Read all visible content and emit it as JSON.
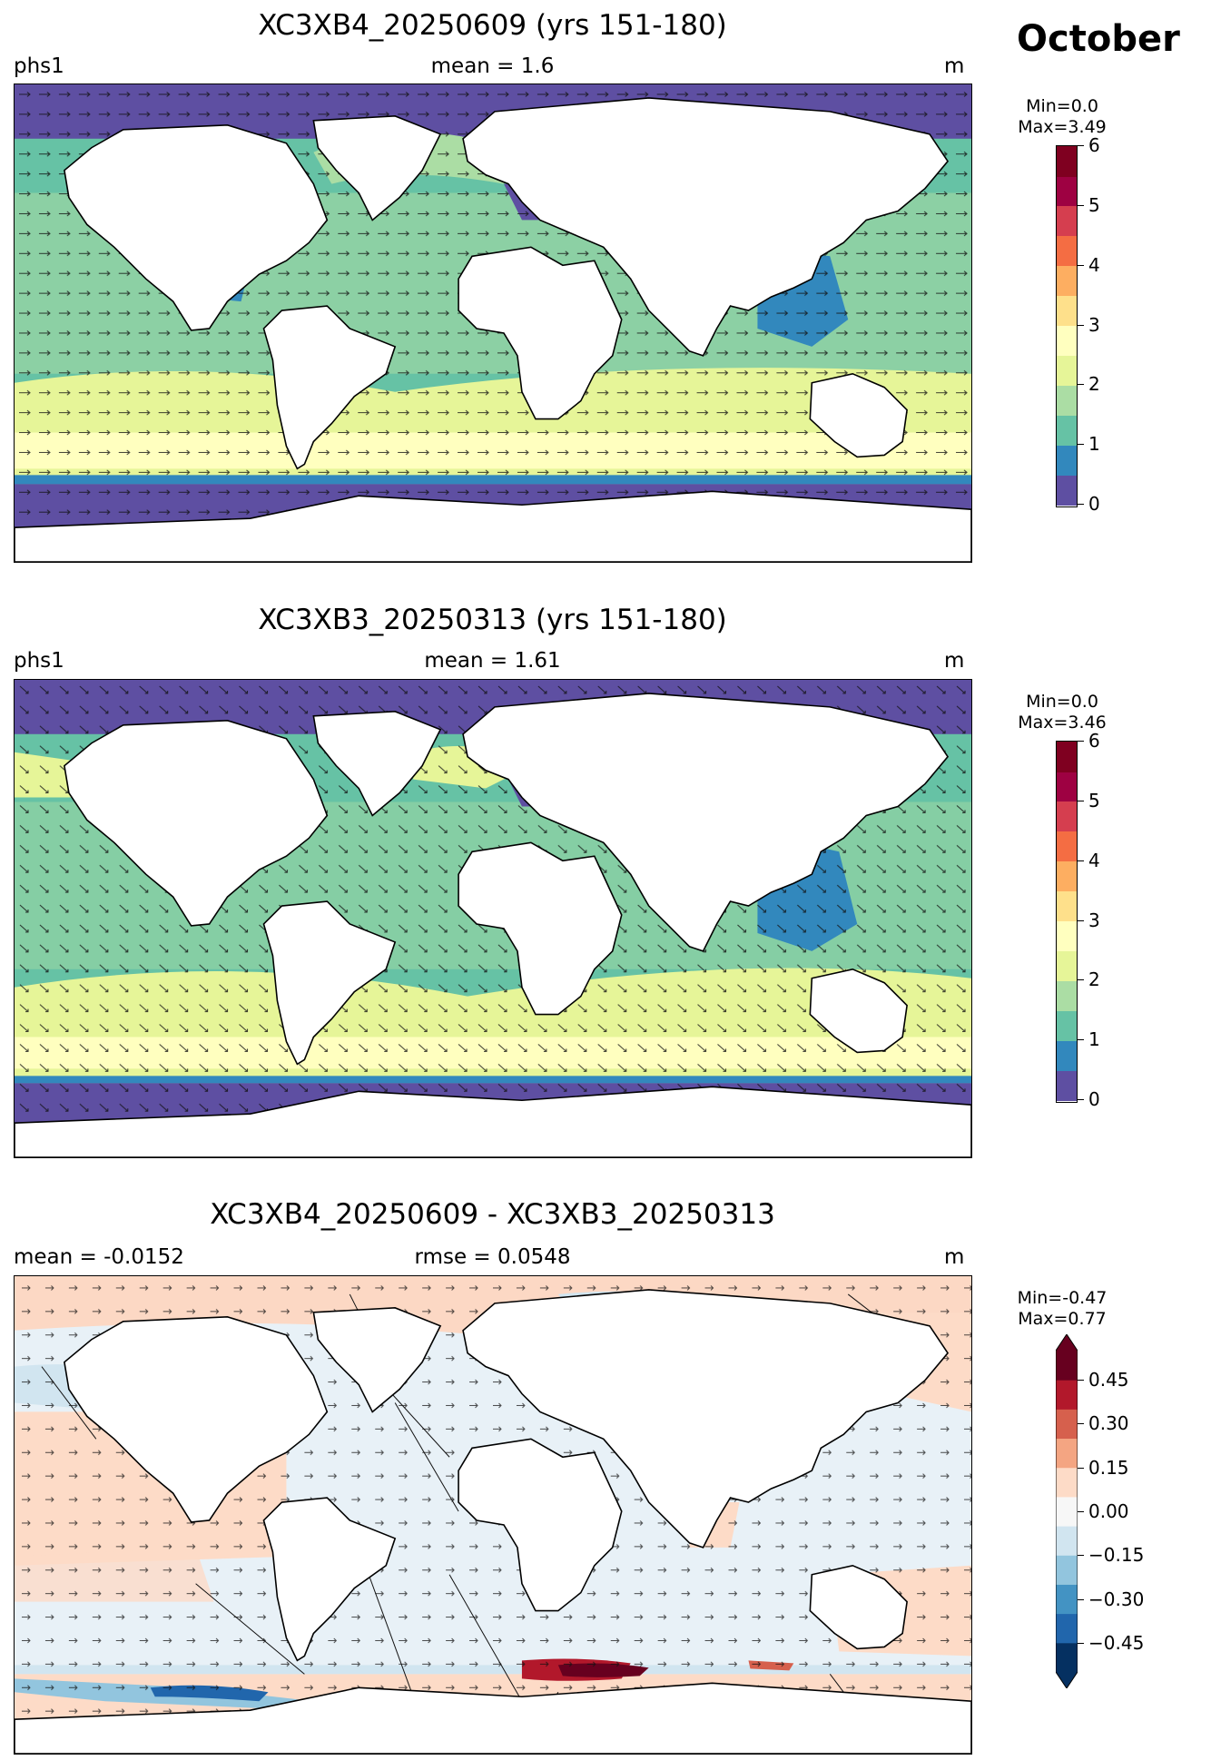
{
  "month": "October",
  "panels": [
    {
      "title": "XC3XB4_20250609 (yrs 151-180)",
      "left_label": "phs1",
      "center_label": "mean = 1.6",
      "right_label": "m",
      "range_text": "Min=0.0\nMax=3.49",
      "colorbar": {
        "type": "sequential",
        "ticks": [
          "0",
          "1",
          "2",
          "3",
          "4",
          "5",
          "6"
        ],
        "colors": [
          "#5e4fa2",
          "#3288bd",
          "#66c2a5",
          "#abdda4",
          "#e6f598",
          "#ffffbf",
          "#fee08b",
          "#fdae61",
          "#f46d43",
          "#d53e4f",
          "#9e0142",
          "#7f0020"
        ]
      }
    },
    {
      "title": "XC3XB3_20250313 (yrs 151-180)",
      "left_label": "phs1",
      "center_label": "mean = 1.61",
      "right_label": "m",
      "range_text": "Min=0.0\nMax=3.46",
      "colorbar": {
        "type": "sequential",
        "ticks": [
          "0",
          "1",
          "2",
          "3",
          "4",
          "5",
          "6"
        ],
        "colors": [
          "#5e4fa2",
          "#3288bd",
          "#66c2a5",
          "#abdda4",
          "#e6f598",
          "#ffffbf",
          "#fee08b",
          "#fdae61",
          "#f46d43",
          "#d53e4f",
          "#9e0142",
          "#7f0020"
        ]
      }
    },
    {
      "title": "XC3XB4_20250609 - XC3XB3_20250313",
      "left_label": "mean = -0.0152",
      "center_label": "rmse = 0.0548",
      "right_label": "m",
      "range_text": "Min=-0.47\nMax=0.77",
      "colorbar": {
        "type": "diverging",
        "ticks": [
          "0.45",
          "0.30",
          "0.15",
          "0.00",
          "−0.15",
          "−0.30",
          "−0.45"
        ],
        "colors": [
          "#053061",
          "#2166ac",
          "#4393c3",
          "#92c5de",
          "#d1e5f0",
          "#f7f7f7",
          "#fddbc7",
          "#f4a582",
          "#d6604d",
          "#b2182b",
          "#67001f"
        ]
      }
    }
  ]
}
